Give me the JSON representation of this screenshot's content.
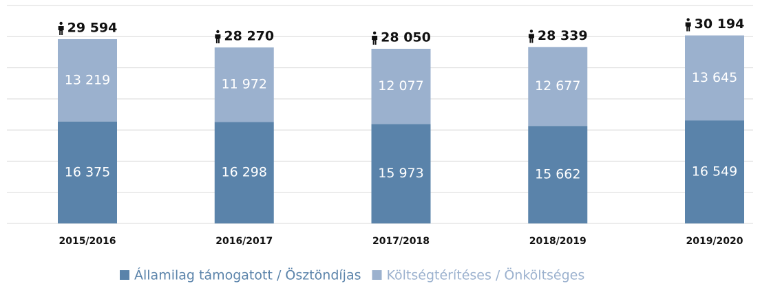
{
  "chart_data": {
    "type": "stacked_bar",
    "categories": [
      "2015/2016",
      "2016/2017",
      "2017/2018",
      "2018/2019",
      "2019/2020"
    ],
    "series": [
      {
        "name": "Államilag támogatott / Ösztöndíjas",
        "color": "#5a83aa",
        "values": [
          16375,
          16298,
          15973,
          15662,
          16549
        ],
        "value_labels": [
          "16 375",
          "16 298",
          "15 973",
          "15 662",
          "16 549"
        ]
      },
      {
        "name": "Költségtérítéses / Önköltséges",
        "color": "#9bb1ce",
        "values": [
          13219,
          11972,
          12077,
          12677,
          13645
        ],
        "value_labels": [
          "13 219",
          "11 972",
          "12 077",
          "12 677",
          "13 645"
        ]
      }
    ],
    "totals": [
      29594,
      28270,
      28050,
      28339,
      30194
    ],
    "total_labels": [
      "29 594",
      "28 270",
      "28 050",
      "28 339",
      "30 194"
    ],
    "ylim": [
      0,
      35000
    ],
    "yticks": [
      0,
      5000,
      10000,
      15000,
      20000,
      25000,
      30000,
      35000
    ],
    "grid": true,
    "legend": "bottom"
  }
}
